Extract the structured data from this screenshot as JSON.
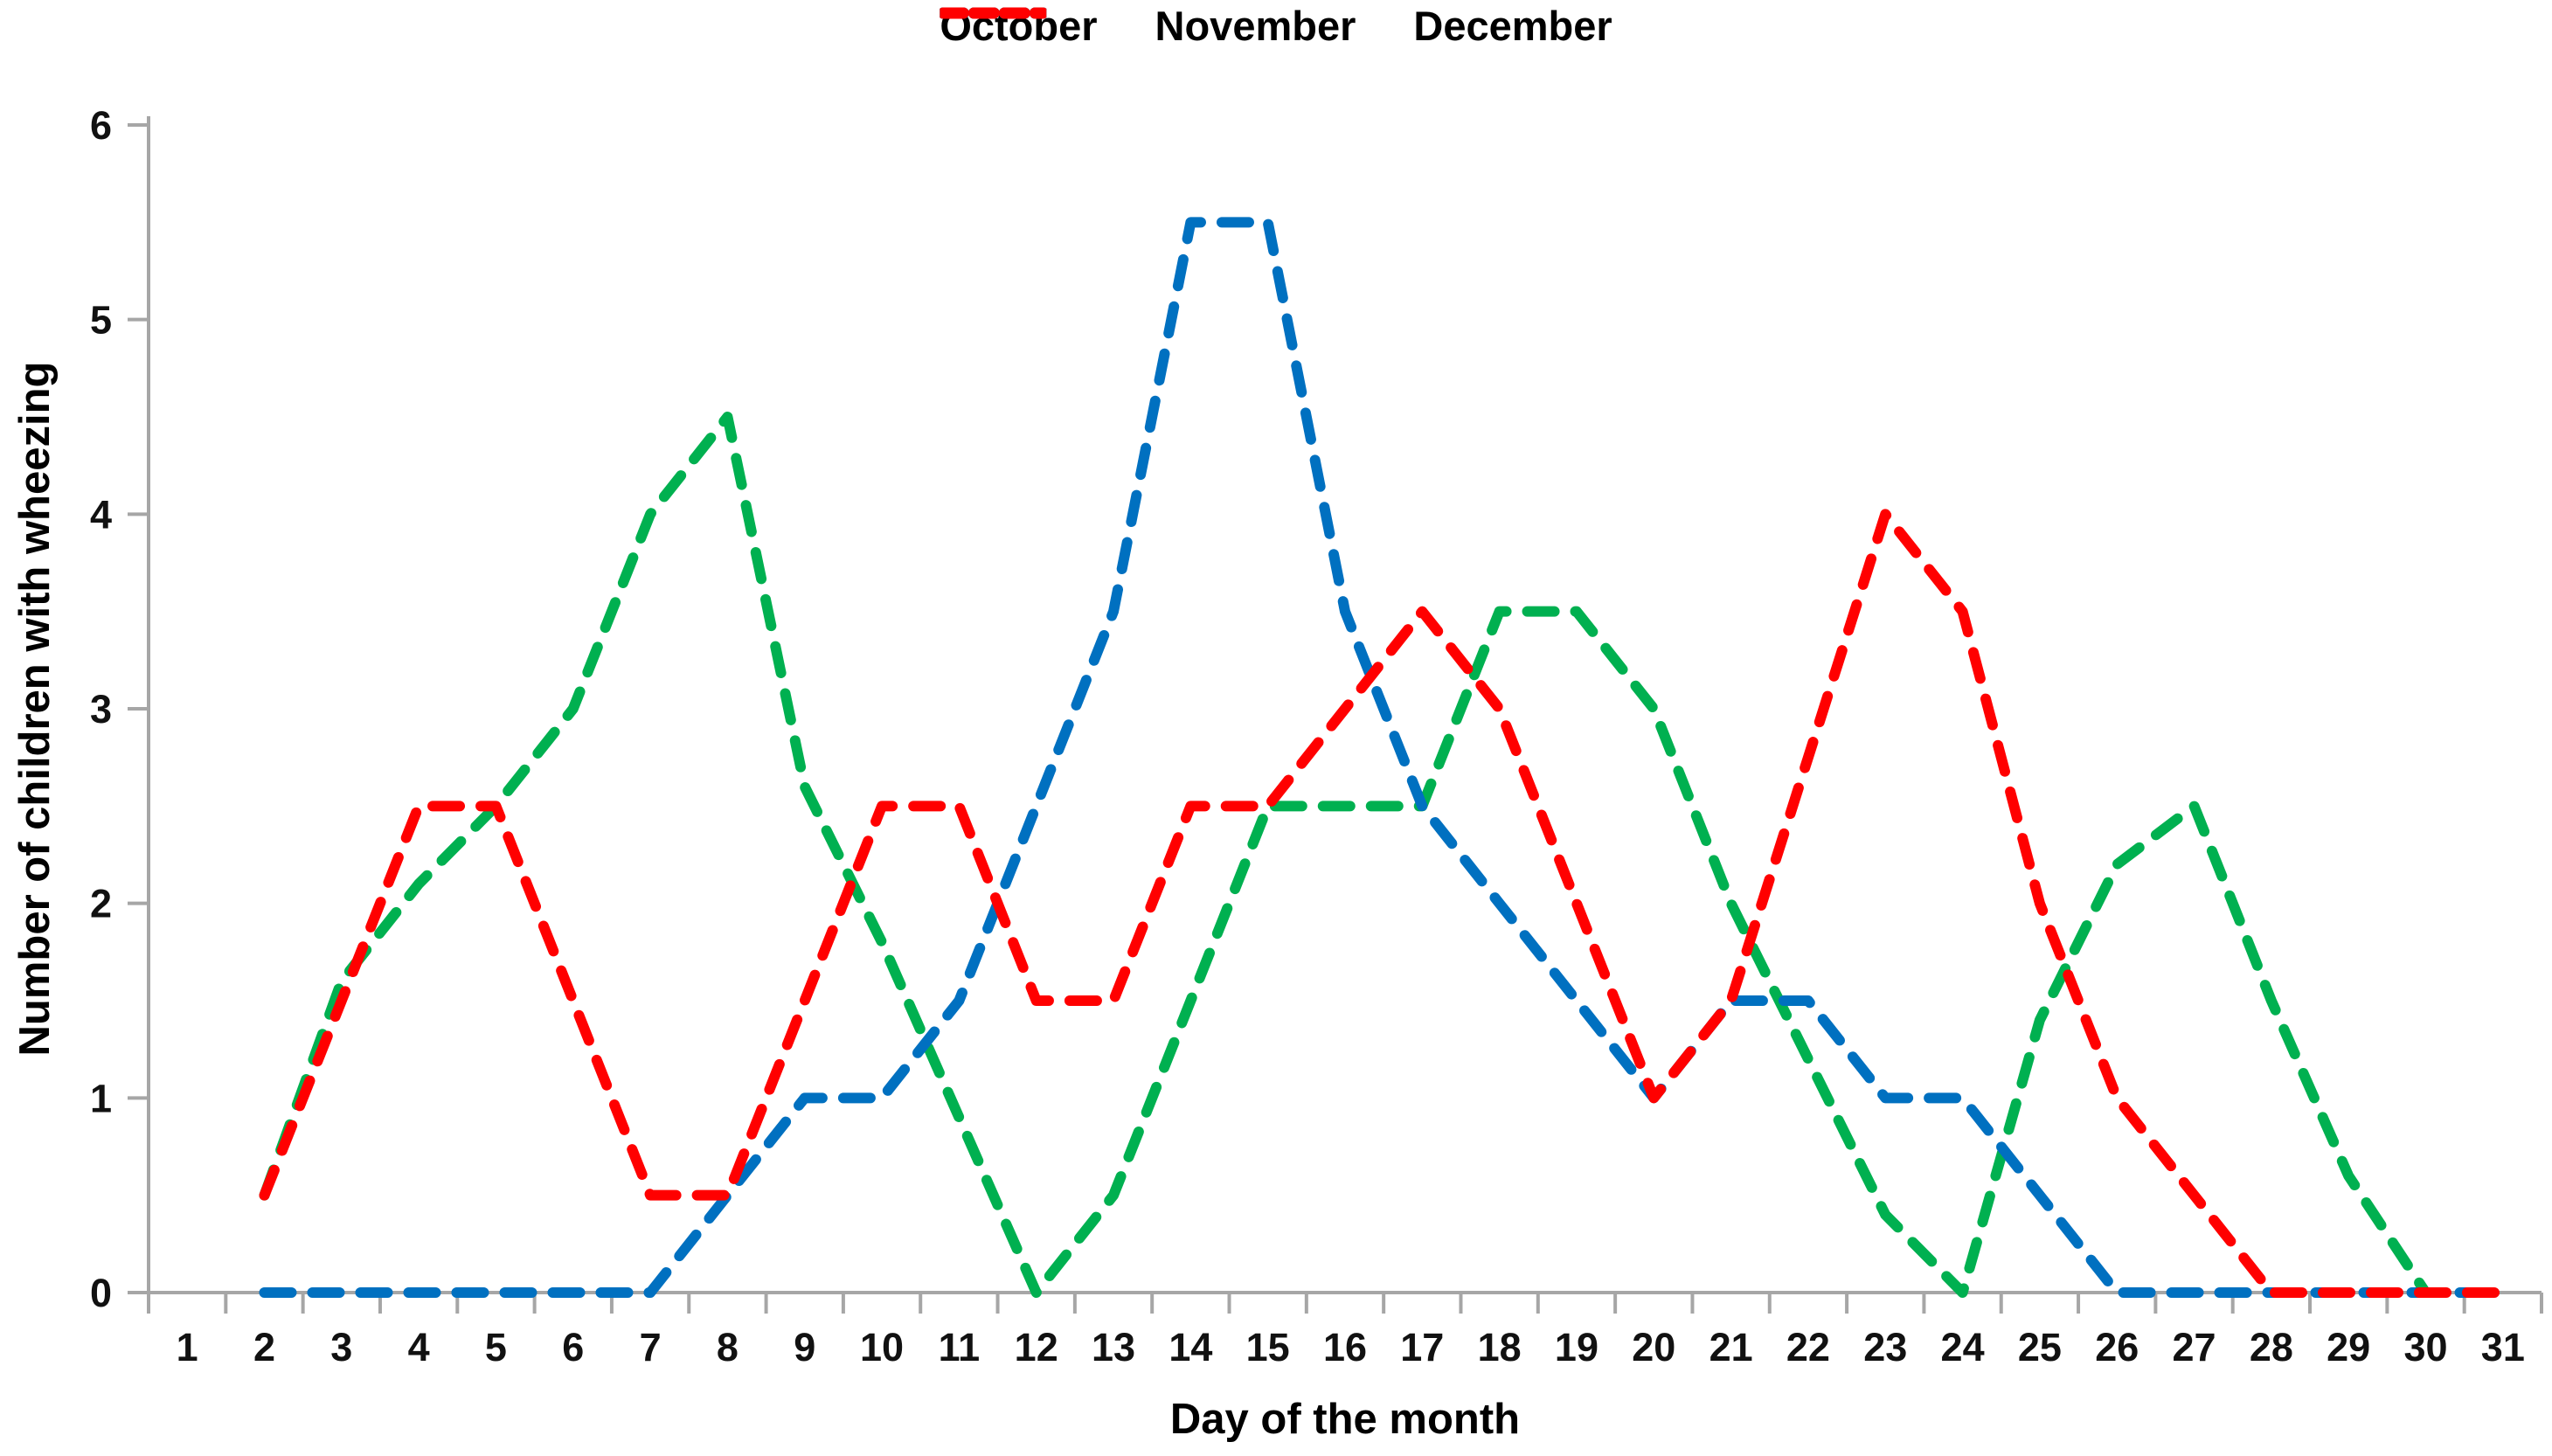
{
  "chart_data": {
    "type": "line",
    "title": "",
    "xlabel": "Day of the month",
    "ylabel": "Number of children with wheezing",
    "x_categories": [
      1,
      2,
      3,
      4,
      5,
      6,
      7,
      8,
      9,
      10,
      11,
      12,
      13,
      14,
      15,
      16,
      17,
      18,
      19,
      20,
      21,
      22,
      23,
      24,
      25,
      26,
      27,
      28,
      29,
      30,
      31
    ],
    "ylim": [
      0,
      6
    ],
    "yticks": [
      0,
      1,
      2,
      3,
      4,
      5,
      6
    ],
    "grid": false,
    "legend_position": "top",
    "line_style": "dashed",
    "axis_color": "#A6A6A6",
    "series": [
      {
        "name": "October",
        "color": "#00B050",
        "values": [
          null,
          0.5,
          1.6,
          2.1,
          2.5,
          3,
          4,
          4.5,
          2.6,
          1.8,
          0.9,
          0,
          0.5,
          1.5,
          2.5,
          2.5,
          2.5,
          3.5,
          3.5,
          3,
          2,
          1.2,
          0.4,
          0,
          1.4,
          2.2,
          2.5,
          1.5,
          0.6,
          0,
          0
        ]
      },
      {
        "name": "November",
        "color": "#0070C0",
        "values": [
          null,
          0,
          0,
          0,
          0,
          0,
          0,
          0.5,
          1,
          1,
          1.5,
          2.5,
          3.5,
          5.5,
          5.5,
          3.5,
          2.5,
          2,
          1.5,
          1,
          1.5,
          1.5,
          1,
          1,
          0.5,
          0,
          0,
          0,
          0,
          0,
          0
        ]
      },
      {
        "name": "December",
        "color": "#FF0000",
        "values": [
          null,
          0.5,
          1.5,
          2.5,
          2.5,
          1.5,
          0.5,
          0.5,
          1.5,
          2.5,
          2.5,
          1.5,
          1.5,
          2.5,
          2.5,
          3,
          3.5,
          3,
          2,
          1,
          1.5,
          2.75,
          4,
          3.5,
          2,
          1,
          0.5,
          0,
          0,
          0,
          0
        ]
      }
    ]
  }
}
